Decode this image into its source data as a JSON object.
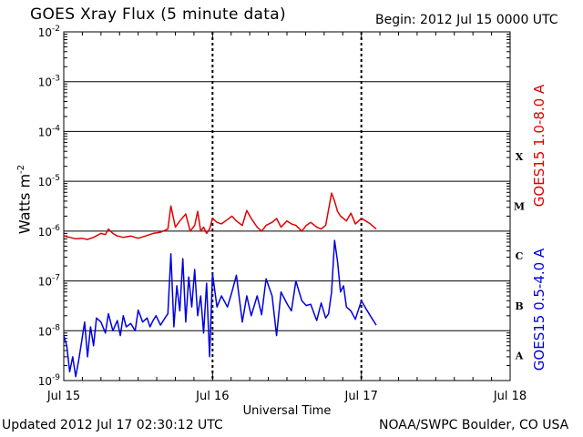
{
  "header": {
    "title": "GOES Xray Flux (5 minute data)",
    "begin": "Begin:  2012 Jul 15 0000 UTC"
  },
  "footer": {
    "updated": "Updated 2012 Jul 17 02:30:12 UTC",
    "credit": "NOAA/SWPC Boulder, CO USA"
  },
  "colors": {
    "red_series": "#e00000",
    "blue_series": "#0000e0",
    "grid": "#000000"
  },
  "chart_data": {
    "type": "line",
    "xlabel": "Universal Time",
    "ylabel": "Watts m",
    "ylabel_exp": "-2",
    "yscale": "log",
    "ylim": [
      1e-09,
      0.01
    ],
    "x_ticks": [
      "Jul 15",
      "Jul 16",
      "Jul 17",
      "Jul 18"
    ],
    "x_range_days": [
      0,
      3
    ],
    "y_ticks": [
      {
        "base": "10",
        "exp": "-2"
      },
      {
        "base": "10",
        "exp": "-3"
      },
      {
        "base": "10",
        "exp": "-4"
      },
      {
        "base": "10",
        "exp": "-5"
      },
      {
        "base": "10",
        "exp": "-6"
      },
      {
        "base": "10",
        "exp": "-7"
      },
      {
        "base": "10",
        "exp": "-8"
      },
      {
        "base": "10",
        "exp": "-9"
      }
    ],
    "flare_classes": [
      "X",
      "M",
      "C",
      "B",
      "A"
    ],
    "grid": true,
    "series": [
      {
        "name": "GOES15 1.0-8.0 A",
        "color": "#e00000",
        "x_days": [
          0.0,
          0.04,
          0.08,
          0.12,
          0.16,
          0.2,
          0.25,
          0.28,
          0.3,
          0.33,
          0.36,
          0.4,
          0.45,
          0.5,
          0.55,
          0.6,
          0.65,
          0.7,
          0.72,
          0.75,
          0.78,
          0.82,
          0.85,
          0.88,
          0.9,
          0.92,
          0.94,
          0.96,
          0.98,
          1.0,
          1.03,
          1.06,
          1.1,
          1.13,
          1.16,
          1.2,
          1.23,
          1.26,
          1.3,
          1.33,
          1.36,
          1.4,
          1.43,
          1.46,
          1.5,
          1.53,
          1.56,
          1.6,
          1.63,
          1.66,
          1.7,
          1.73,
          1.76,
          1.8,
          1.82,
          1.84,
          1.86,
          1.88,
          1.9,
          1.93,
          1.96,
          2.0,
          2.03,
          2.06,
          2.1
        ],
        "y": [
          8e-07,
          7.5e-07,
          7e-07,
          7.2e-07,
          6.8e-07,
          7.5e-07,
          9e-07,
          8.5e-07,
          1.1e-06,
          9e-07,
          8e-07,
          7.5e-07,
          8e-07,
          7.2e-07,
          8e-07,
          9e-07,
          9.5e-07,
          1.1e-06,
          3.2e-06,
          1.2e-06,
          1.6e-06,
          2.2e-06,
          1e-06,
          1.3e-06,
          2.5e-06,
          1e-06,
          1.2e-06,
          9e-07,
          1.1e-06,
          1.8e-06,
          1.5e-06,
          1.4e-06,
          1.7e-06,
          2e-06,
          1.6e-06,
          1.3e-06,
          2.6e-06,
          1.8e-06,
          1.2e-06,
          1e-06,
          1.3e-06,
          1.5e-06,
          1.8e-06,
          1.2e-06,
          1.6e-06,
          1.4e-06,
          1.3e-06,
          1e-06,
          1.3e-06,
          1.5e-06,
          1.2e-06,
          1.1e-06,
          1.3e-06,
          5.8e-06,
          4e-06,
          2.5e-06,
          2e-06,
          1.8e-06,
          1.6e-06,
          2.3e-06,
          1.4e-06,
          1.8e-06,
          1.6e-06,
          1.4e-06,
          1.1e-06
        ]
      },
      {
        "name": "GOES15 0.5-4.0 A",
        "color": "#0000e0",
        "x_days": [
          0.0,
          0.02,
          0.04,
          0.06,
          0.08,
          0.1,
          0.12,
          0.14,
          0.16,
          0.18,
          0.2,
          0.22,
          0.25,
          0.28,
          0.3,
          0.33,
          0.36,
          0.38,
          0.4,
          0.42,
          0.45,
          0.48,
          0.5,
          0.53,
          0.56,
          0.58,
          0.6,
          0.62,
          0.65,
          0.68,
          0.7,
          0.72,
          0.74,
          0.76,
          0.78,
          0.8,
          0.82,
          0.84,
          0.86,
          0.88,
          0.9,
          0.92,
          0.94,
          0.96,
          0.98,
          1.0,
          1.03,
          1.06,
          1.1,
          1.13,
          1.16,
          1.2,
          1.23,
          1.26,
          1.3,
          1.33,
          1.36,
          1.4,
          1.43,
          1.46,
          1.5,
          1.53,
          1.56,
          1.6,
          1.63,
          1.66,
          1.7,
          1.73,
          1.76,
          1.78,
          1.8,
          1.82,
          1.84,
          1.86,
          1.88,
          1.9,
          1.93,
          1.96,
          2.0,
          2.03,
          2.06,
          2.1
        ],
        "y": [
          8e-09,
          5e-09,
          1.5e-09,
          3e-09,
          1.2e-09,
          2.5e-09,
          6e-09,
          1.5e-08,
          3e-09,
          1.2e-08,
          5e-09,
          1.8e-08,
          1.5e-08,
          9e-09,
          2.2e-08,
          1e-08,
          1.6e-08,
          8e-09,
          2e-08,
          1.2e-08,
          1.4e-08,
          1e-08,
          2.6e-08,
          1.5e-08,
          1.8e-08,
          1.2e-08,
          1.6e-08,
          2e-08,
          1.3e-08,
          1.8e-08,
          2.2e-08,
          3.5e-07,
          1.2e-08,
          8e-08,
          2.5e-08,
          2.8e-07,
          1.5e-08,
          1.2e-07,
          3e-08,
          1.7e-07,
          2e-08,
          5e-08,
          9e-09,
          9e-08,
          3e-09,
          1.4e-07,
          3e-08,
          5e-08,
          3e-08,
          6e-08,
          1.3e-07,
          1.5e-08,
          5e-08,
          2e-08,
          5e-08,
          2.1e-08,
          1.1e-07,
          5e-08,
          8e-09,
          6e-08,
          3.5e-08,
          2.5e-08,
          1e-07,
          4e-08,
          3.2e-08,
          3.4e-08,
          1.6e-08,
          3.6e-08,
          1.8e-08,
          2.2e-08,
          6e-08,
          6.5e-07,
          2.5e-07,
          6e-08,
          8e-08,
          3e-08,
          2.5e-08,
          1.7e-08,
          4e-08,
          2.8e-08,
          2e-08,
          1.3e-08
        ]
      }
    ]
  }
}
